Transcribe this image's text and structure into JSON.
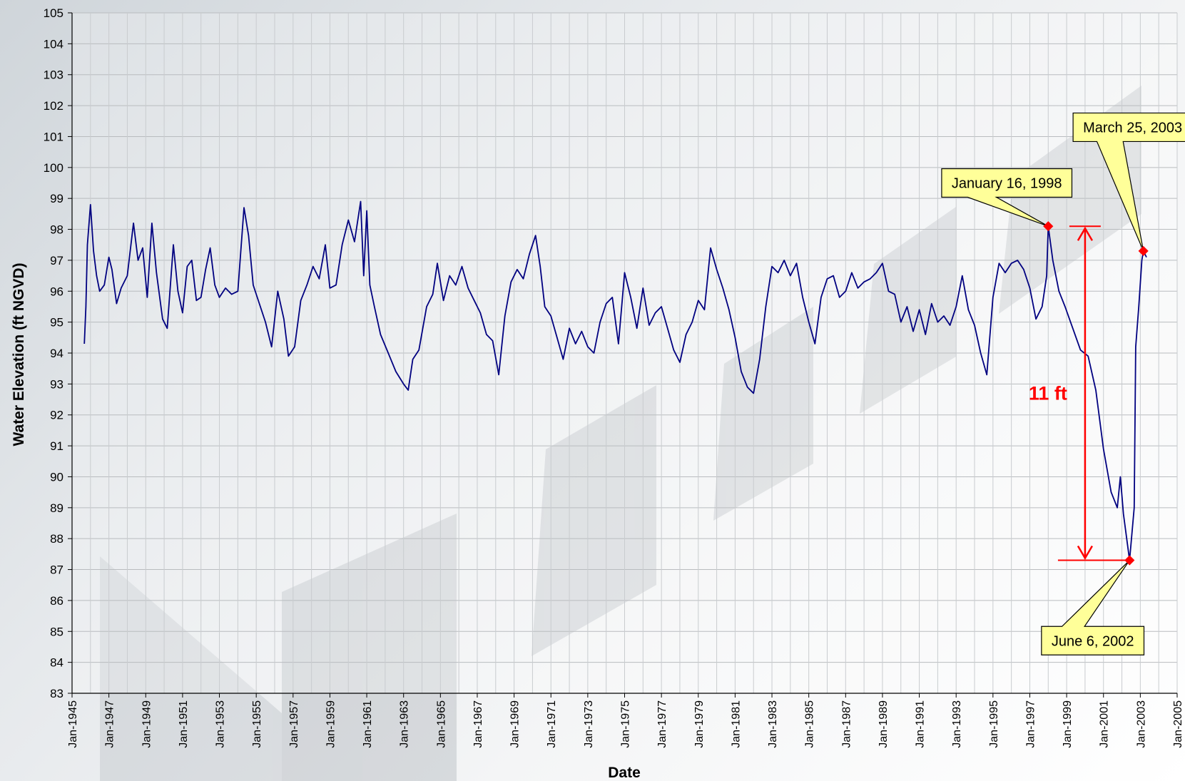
{
  "chart_data": {
    "type": "line",
    "title": "",
    "xlabel": "Date",
    "ylabel": "Water Elevation (ft NGVD)",
    "xlim": [
      "1945-01",
      "2005-01"
    ],
    "ylim": [
      83,
      105
    ],
    "grid": true,
    "y_ticks": [
      83,
      84,
      85,
      86,
      87,
      88,
      89,
      90,
      91,
      92,
      93,
      94,
      95,
      96,
      97,
      98,
      99,
      100,
      101,
      102,
      103,
      104,
      105
    ],
    "x_tick_labels": [
      "Jan-1945",
      "Jan-1947",
      "Jan-1949",
      "Jan-1951",
      "Jan-1953",
      "Jan-1955",
      "Jan-1957",
      "Jan-1959",
      "Jan-1961",
      "Jan-1963",
      "Jan-1965",
      "Jan-1967",
      "Jan-1969",
      "Jan-1971",
      "Jan-1973",
      "Jan-1975",
      "Jan-1977",
      "Jan-1979",
      "Jan-1981",
      "Jan-1983",
      "Jan-1985",
      "Jan-1987",
      "Jan-1989",
      "Jan-1991",
      "Jan-1993",
      "Jan-1995",
      "Jan-1997",
      "Jan-1999",
      "Jan-2001",
      "Jan-2003",
      "Jan-2005"
    ],
    "series": [
      {
        "color": "#000080",
        "points": [
          [
            "1945-09",
            94.3
          ],
          [
            "1945-10",
            95.5
          ],
          [
            "1945-11",
            97.5
          ],
          [
            "1946-01",
            98.8
          ],
          [
            "1946-03",
            97.3
          ],
          [
            "1946-05",
            96.5
          ],
          [
            "1946-07",
            96.0
          ],
          [
            "1946-10",
            96.2
          ],
          [
            "1947-01",
            97.1
          ],
          [
            "1947-03",
            96.7
          ],
          [
            "1947-06",
            95.6
          ],
          [
            "1947-09",
            96.1
          ],
          [
            "1948-01",
            96.5
          ],
          [
            "1948-05",
            98.2
          ],
          [
            "1948-08",
            97.0
          ],
          [
            "1948-11",
            97.4
          ],
          [
            "1949-02",
            95.8
          ],
          [
            "1949-05",
            98.2
          ],
          [
            "1949-08",
            96.6
          ],
          [
            "1949-12",
            95.1
          ],
          [
            "1950-03",
            94.8
          ],
          [
            "1950-07",
            97.5
          ],
          [
            "1950-10",
            96.0
          ],
          [
            "1951-01",
            95.3
          ],
          [
            "1951-04",
            96.8
          ],
          [
            "1951-07",
            97.0
          ],
          [
            "1951-10",
            95.7
          ],
          [
            "1952-01",
            95.8
          ],
          [
            "1952-04",
            96.7
          ],
          [
            "1952-07",
            97.4
          ],
          [
            "1952-10",
            96.2
          ],
          [
            "1953-01",
            95.8
          ],
          [
            "1953-05",
            96.1
          ],
          [
            "1953-09",
            95.9
          ],
          [
            "1954-01",
            96.0
          ],
          [
            "1954-05",
            98.7
          ],
          [
            "1954-08",
            97.8
          ],
          [
            "1954-11",
            96.2
          ],
          [
            "1955-03",
            95.6
          ],
          [
            "1955-07",
            95.0
          ],
          [
            "1955-11",
            94.2
          ],
          [
            "1956-03",
            96.0
          ],
          [
            "1956-07",
            95.1
          ],
          [
            "1956-10",
            93.9
          ],
          [
            "1957-02",
            94.2
          ],
          [
            "1957-06",
            95.7
          ],
          [
            "1957-10",
            96.2
          ],
          [
            "1958-02",
            96.8
          ],
          [
            "1958-06",
            96.4
          ],
          [
            "1958-10",
            97.5
          ],
          [
            "1959-01",
            96.1
          ],
          [
            "1959-05",
            96.2
          ],
          [
            "1959-09",
            97.5
          ],
          [
            "1960-01",
            98.3
          ],
          [
            "1960-05",
            97.6
          ],
          [
            "1960-09",
            98.9
          ],
          [
            "1960-11",
            96.5
          ],
          [
            "1961-01",
            98.6
          ],
          [
            "1961-03",
            96.2
          ],
          [
            "1961-06",
            95.5
          ],
          [
            "1961-10",
            94.6
          ],
          [
            "1962-03",
            94.0
          ],
          [
            "1962-08",
            93.4
          ],
          [
            "1963-01",
            93.0
          ],
          [
            "1963-04",
            92.8
          ],
          [
            "1963-07",
            93.8
          ],
          [
            "1963-11",
            94.1
          ],
          [
            "1964-04",
            95.5
          ],
          [
            "1964-08",
            95.9
          ],
          [
            "1964-11",
            96.9
          ],
          [
            "1965-03",
            95.7
          ],
          [
            "1965-07",
            96.5
          ],
          [
            "1965-11",
            96.2
          ],
          [
            "1966-03",
            96.8
          ],
          [
            "1966-07",
            96.1
          ],
          [
            "1966-11",
            95.7
          ],
          [
            "1967-03",
            95.3
          ],
          [
            "1967-07",
            94.6
          ],
          [
            "1967-11",
            94.4
          ],
          [
            "1968-03",
            93.3
          ],
          [
            "1968-07",
            95.2
          ],
          [
            "1968-11",
            96.3
          ],
          [
            "1969-03",
            96.7
          ],
          [
            "1969-07",
            96.4
          ],
          [
            "1969-11",
            97.2
          ],
          [
            "1970-03",
            97.8
          ],
          [
            "1970-06",
            96.8
          ],
          [
            "1970-09",
            95.5
          ],
          [
            "1971-01",
            95.2
          ],
          [
            "1971-05",
            94.5
          ],
          [
            "1971-09",
            93.8
          ],
          [
            "1972-01",
            94.8
          ],
          [
            "1972-05",
            94.3
          ],
          [
            "1972-09",
            94.7
          ],
          [
            "1973-01",
            94.2
          ],
          [
            "1973-05",
            94.0
          ],
          [
            "1973-09",
            95.0
          ],
          [
            "1974-01",
            95.6
          ],
          [
            "1974-05",
            95.8
          ],
          [
            "1974-09",
            94.3
          ],
          [
            "1975-01",
            96.6
          ],
          [
            "1975-05",
            95.8
          ],
          [
            "1975-09",
            94.8
          ],
          [
            "1976-01",
            96.1
          ],
          [
            "1976-05",
            94.9
          ],
          [
            "1976-09",
            95.3
          ],
          [
            "1977-01",
            95.5
          ],
          [
            "1977-05",
            94.8
          ],
          [
            "1977-09",
            94.1
          ],
          [
            "1978-01",
            93.7
          ],
          [
            "1978-05",
            94.6
          ],
          [
            "1978-09",
            95.0
          ],
          [
            "1979-01",
            95.7
          ],
          [
            "1979-05",
            95.4
          ],
          [
            "1979-09",
            97.4
          ],
          [
            "1980-01",
            96.7
          ],
          [
            "1980-05",
            96.1
          ],
          [
            "1980-09",
            95.4
          ],
          [
            "1981-01",
            94.5
          ],
          [
            "1981-05",
            93.4
          ],
          [
            "1981-09",
            92.9
          ],
          [
            "1982-01",
            92.7
          ],
          [
            "1982-05",
            93.8
          ],
          [
            "1982-09",
            95.5
          ],
          [
            "1983-01",
            96.8
          ],
          [
            "1983-05",
            96.6
          ],
          [
            "1983-09",
            97.0
          ],
          [
            "1984-01",
            96.5
          ],
          [
            "1984-05",
            96.9
          ],
          [
            "1984-09",
            95.8
          ],
          [
            "1985-01",
            95.0
          ],
          [
            "1985-05",
            94.3
          ],
          [
            "1985-09",
            95.8
          ],
          [
            "1986-01",
            96.4
          ],
          [
            "1986-05",
            96.5
          ],
          [
            "1986-09",
            95.8
          ],
          [
            "1987-01",
            96.0
          ],
          [
            "1987-05",
            96.6
          ],
          [
            "1987-09",
            96.1
          ],
          [
            "1988-01",
            96.3
          ],
          [
            "1988-05",
            96.4
          ],
          [
            "1988-09",
            96.6
          ],
          [
            "1989-01",
            96.9
          ],
          [
            "1989-05",
            96.0
          ],
          [
            "1989-09",
            95.9
          ],
          [
            "1990-01",
            95.0
          ],
          [
            "1990-05",
            95.5
          ],
          [
            "1990-09",
            94.7
          ],
          [
            "1991-01",
            95.4
          ],
          [
            "1991-05",
            94.6
          ],
          [
            "1991-09",
            95.6
          ],
          [
            "1992-01",
            95.0
          ],
          [
            "1992-05",
            95.2
          ],
          [
            "1992-09",
            94.9
          ],
          [
            "1993-01",
            95.5
          ],
          [
            "1993-05",
            96.5
          ],
          [
            "1993-09",
            95.4
          ],
          [
            "1994-01",
            94.9
          ],
          [
            "1994-05",
            94.0
          ],
          [
            "1994-09",
            93.3
          ],
          [
            "1995-01",
            95.8
          ],
          [
            "1995-05",
            96.9
          ],
          [
            "1995-09",
            96.6
          ],
          [
            "1996-01",
            96.9
          ],
          [
            "1996-05",
            97.0
          ],
          [
            "1996-09",
            96.7
          ],
          [
            "1997-01",
            96.1
          ],
          [
            "1997-05",
            95.1
          ],
          [
            "1997-09",
            95.5
          ],
          [
            "1997-12",
            96.5
          ],
          [
            "1998-01",
            98.1
          ],
          [
            "1998-04",
            97.0
          ],
          [
            "1998-08",
            96.0
          ],
          [
            "1998-12",
            95.5
          ],
          [
            "1999-05",
            94.8
          ],
          [
            "1999-10",
            94.1
          ],
          [
            "2000-03",
            93.9
          ],
          [
            "2000-08",
            92.8
          ],
          [
            "2001-01",
            90.9
          ],
          [
            "2001-06",
            89.5
          ],
          [
            "2001-10",
            89.0
          ],
          [
            "2001-12",
            90.0
          ],
          [
            "2002-02",
            88.8
          ],
          [
            "2002-06",
            87.3
          ],
          [
            "2002-09",
            89.0
          ],
          [
            "2002-10",
            94.2
          ],
          [
            "2002-12",
            95.5
          ],
          [
            "2003-02",
            97.0
          ],
          [
            "2003-03",
            97.3
          ],
          [
            "2003-05",
            97.1
          ]
        ]
      }
    ],
    "highlighted_points": [
      {
        "label": "January 16, 1998",
        "x": "1998-01",
        "y": 98.1,
        "box_x": "1995-10",
        "box_y": 99.5
      },
      {
        "label": "March 25, 2003",
        "x": "2003-03",
        "y": 97.3,
        "box_x": "2002-08",
        "box_y": 101.3
      },
      {
        "label": "June 6, 2002",
        "x": "2002-06",
        "y": 87.3,
        "box_x": "2000-06",
        "box_y": 84.7
      }
    ],
    "measurement": {
      "label": "11 ft",
      "x": "2000-01",
      "from": 98.1,
      "to": 87.3
    }
  }
}
